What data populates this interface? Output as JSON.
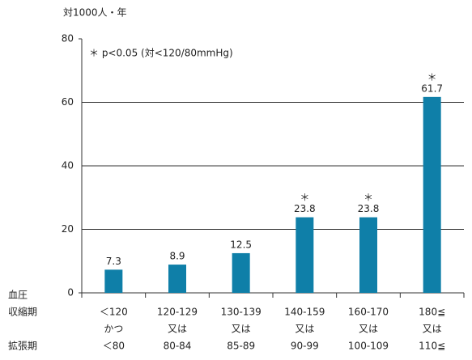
{
  "chart_data": {
    "type": "bar",
    "y_unit_label": "対1000人・年",
    "annotation": "＊ p<0.05 (対<120/80mmHg)",
    "significance_marker": "＊",
    "row_labels": [
      "血圧",
      "収縮期",
      "拡張期"
    ],
    "categories": [
      "＜120",
      "120-129",
      "130-139",
      "140-159",
      "160-170",
      "180≦"
    ],
    "connectors": [
      "かつ",
      "又は",
      "又は",
      "又は",
      "又は",
      "又は"
    ],
    "diastolic": [
      "＜80",
      "80-84",
      "85-89",
      "90-99",
      "100-109",
      "110≦"
    ],
    "values": [
      7.3,
      8.9,
      12.5,
      23.8,
      23.8,
      61.7
    ],
    "significant": [
      false,
      false,
      false,
      true,
      true,
      true
    ],
    "color": "#0f7fa8",
    "ylim": [
      0,
      80
    ],
    "yticks": [
      0,
      20,
      40,
      60,
      80
    ],
    "grid": true
  }
}
